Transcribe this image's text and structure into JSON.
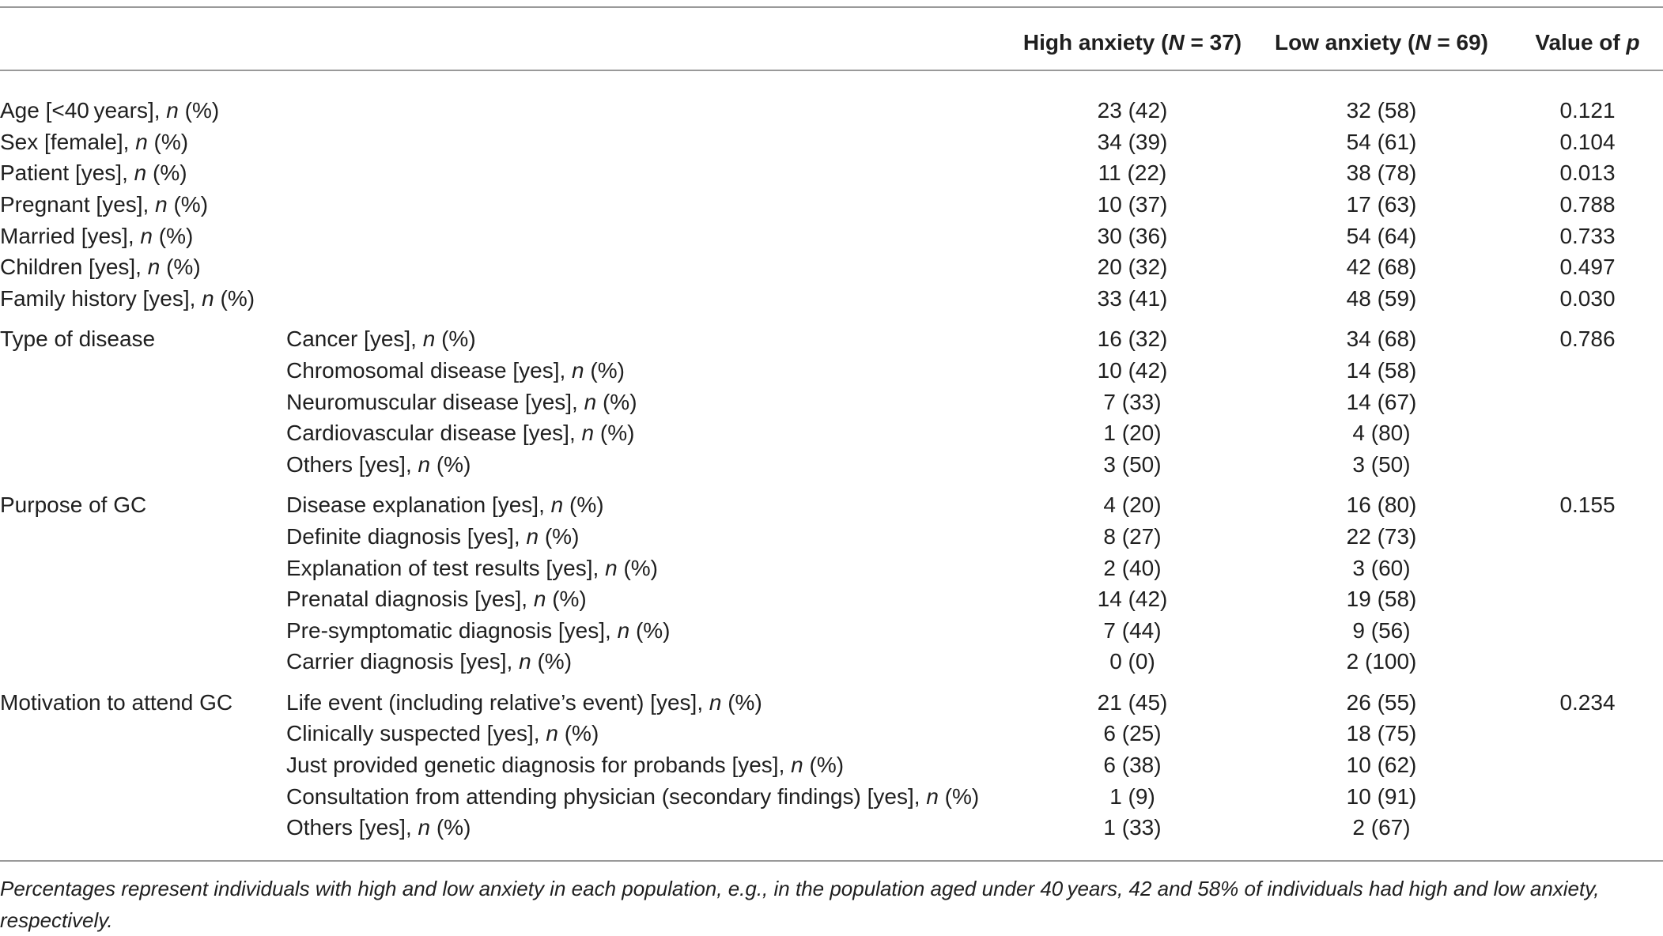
{
  "header": {
    "col_high": "High anxiety (N = 37)",
    "col_low": "Low anxiety (N = 69)",
    "col_p": "Value of p"
  },
  "rows": [
    {
      "cat": "Age [<40 years], ",
      "sub": "",
      "high": "23 (42)",
      "low": "32 (58)",
      "p": "0.121"
    },
    {
      "cat": "Sex [female], ",
      "sub": "",
      "high": "34 (39)",
      "low": "54 (61)",
      "p": "0.104"
    },
    {
      "cat": "Patient [yes], ",
      "sub": "",
      "high": "11 (22)",
      "low": "38 (78)",
      "p": "0.013"
    },
    {
      "cat": "Pregnant [yes], ",
      "sub": "",
      "high": "10 (37)",
      "low": "17 (63)",
      "p": "0.788"
    },
    {
      "cat": "Married [yes], ",
      "sub": "",
      "high": "30 (36)",
      "low": "54 (64)",
      "p": "0.733"
    },
    {
      "cat": "Children [yes], ",
      "sub": "",
      "high": "20 (32)",
      "low": "42 (68)",
      "p": "0.497"
    },
    {
      "cat": "Family history [yes], ",
      "sub": "",
      "high": "33 (41)",
      "low": "48 (59)",
      "p": "0.030"
    },
    {
      "cat": "Type of disease",
      "sub": "Cancer [yes], ",
      "high": "16 (32)",
      "low": "34 (68)",
      "p": "0.786"
    },
    {
      "cat": "",
      "sub": "Chromosomal disease [yes], ",
      "high": "10 (42)",
      "low": "14 (58)",
      "p": ""
    },
    {
      "cat": "",
      "sub": "Neuromuscular disease [yes], ",
      "high": "7 (33)",
      "low": "14 (67)",
      "p": ""
    },
    {
      "cat": "",
      "sub": "Cardiovascular disease [yes], ",
      "high": "1 (20)",
      "low": "4 (80)",
      "p": ""
    },
    {
      "cat": "",
      "sub": "Others [yes], ",
      "high": "3 (50)",
      "low": "3 (50)",
      "p": ""
    },
    {
      "cat": "Purpose of GC",
      "sub": "Disease explanation [yes], ",
      "high": "4 (20)",
      "low": "16 (80)",
      "p": "0.155"
    },
    {
      "cat": "",
      "sub": "Definite diagnosis [yes], ",
      "high": "8 (27)",
      "low": "22 (73)",
      "p": ""
    },
    {
      "cat": "",
      "sub": "Explanation of test results [yes], ",
      "high": "2 (40)",
      "low": "3 (60)",
      "p": ""
    },
    {
      "cat": "",
      "sub": "Prenatal diagnosis [yes], ",
      "high": "14 (42)",
      "low": "19 (58)",
      "p": ""
    },
    {
      "cat": "",
      "sub": "Pre-symptomatic diagnosis [yes], ",
      "high": "7 (44)",
      "low": "9 (56)",
      "p": ""
    },
    {
      "cat": "",
      "sub": "Carrier diagnosis [yes], ",
      "high": "0 (0)",
      "low": "2 (100)",
      "p": ""
    },
    {
      "cat": "Motivation to attend GC",
      "sub": "Life event (including relative’s event) [yes], ",
      "high": "21 (45)",
      "low": "26 (55)",
      "p": "0.234"
    },
    {
      "cat": "",
      "sub": "Clinically suspected [yes], ",
      "high": "6 (25)",
      "low": "18 (75)",
      "p": ""
    },
    {
      "cat": "",
      "sub": "Just provided genetic diagnosis for probands [yes], ",
      "high": "6 (38)",
      "low": "10 (62)",
      "p": ""
    },
    {
      "cat": "",
      "sub": "Consultation from attending physician (secondary findings) [yes], ",
      "high": "1 (9)",
      "low": "10 (91)",
      "p": ""
    },
    {
      "cat": "",
      "sub": "Others [yes], ",
      "high": "1 (33)",
      "low": "2 (67)",
      "p": ""
    }
  ],
  "n_label": "n",
  "pct_label": " (%)",
  "footnote": "Percentages represent individuals with high and low anxiety in each population, e.g., in the population aged under 40 years, 42 and 58% of individuals had high and low anxiety, respectively."
}
